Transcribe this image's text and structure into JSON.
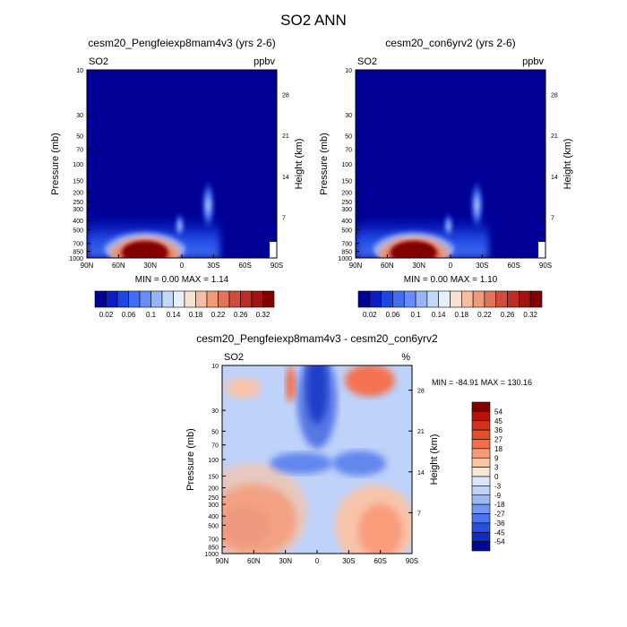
{
  "page": {
    "title": "SO2 ANN"
  },
  "chart_data": [
    {
      "type": "heatmap",
      "title": "cesm20_Pengfeiexp8mam4v3 (yrs 2-6)",
      "left_label": "SO2",
      "units": "ppbv",
      "ylabel": "Pressure (mb)",
      "ylabel_right": "Height (km)",
      "x_ticks": [
        "90N",
        "60N",
        "30N",
        "0",
        "30S",
        "60S",
        "90S"
      ],
      "y_ticks": [
        "10",
        "30",
        "50",
        "70",
        "100",
        "150",
        "200",
        "250",
        "300",
        "400",
        "500",
        "700",
        "850",
        "1000"
      ],
      "y_ticks_right": [
        "28",
        "21",
        "14",
        "7"
      ],
      "min_max": "MIN =   0.00  MAX =   1.14",
      "colorbar": {
        "labels": [
          "0.02",
          "0.06",
          "0.1",
          "0.14",
          "0.18",
          "0.22",
          "0.26",
          "0.32"
        ],
        "colors": [
          "#000096",
          "#0a1ec8",
          "#1e46e1",
          "#416ef0",
          "#698cfa",
          "#96b4fa",
          "#c3d7fa",
          "#e6f0fa",
          "#fae1d2",
          "#f5bea0",
          "#f09b78",
          "#e1735a",
          "#d24b3c",
          "#be2d23",
          "#a01414",
          "#820000"
        ]
      },
      "xlim": [
        90,
        -90
      ],
      "ylim": [
        1000,
        10
      ]
    },
    {
      "type": "heatmap",
      "title": "cesm20_con6yrv2 (yrs 2-6)",
      "left_label": "SO2",
      "units": "ppbv",
      "ylabel": "Pressure (mb)",
      "ylabel_right": "Height (km)",
      "x_ticks": [
        "90N",
        "60N",
        "30N",
        "0",
        "30S",
        "60S",
        "90S"
      ],
      "y_ticks": [
        "10",
        "30",
        "50",
        "70",
        "100",
        "150",
        "200",
        "250",
        "300",
        "400",
        "500",
        "700",
        "850",
        "1000"
      ],
      "y_ticks_right": [
        "28",
        "21",
        "14",
        "7"
      ],
      "min_max": "MIN =   0.00  MAX =   1.10",
      "colorbar": {
        "labels": [
          "0.02",
          "0.06",
          "0.1",
          "0.14",
          "0.18",
          "0.22",
          "0.26",
          "0.32"
        ],
        "colors": [
          "#000096",
          "#0a1ec8",
          "#1e46e1",
          "#416ef0",
          "#698cfa",
          "#96b4fa",
          "#c3d7fa",
          "#e6f0fa",
          "#fae1d2",
          "#f5bea0",
          "#f09b78",
          "#e1735a",
          "#d24b3c",
          "#be2d23",
          "#a01414",
          "#820000"
        ]
      },
      "xlim": [
        90,
        -90
      ],
      "ylim": [
        1000,
        10
      ]
    },
    {
      "type": "heatmap",
      "title": "cesm20_Pengfeiexp8mam4v3 - cesm20_con6yrv2",
      "left_label": "SO2",
      "units": "%",
      "ylabel": "Pressure (mb)",
      "ylabel_right": "Height (km)",
      "x_ticks": [
        "90N",
        "60N",
        "30N",
        "0",
        "30S",
        "60S",
        "90S"
      ],
      "y_ticks": [
        "10",
        "30",
        "50",
        "70",
        "100",
        "150",
        "200",
        "250",
        "300",
        "400",
        "500",
        "700",
        "850",
        "1000"
      ],
      "y_ticks_right": [
        "28",
        "21",
        "14",
        "7"
      ],
      "min_max": "MIN = -84.91  MAX = 130.16",
      "colorbar": {
        "labels": [
          "54",
          "45",
          "36",
          "27",
          "18",
          "9",
          "3",
          "0",
          "-3",
          "-9",
          "-18",
          "-27",
          "-36",
          "-45",
          "-54"
        ],
        "colors": [
          "#820000",
          "#b4140a",
          "#d2321e",
          "#e65028",
          "#f56e46",
          "#fa9b78",
          "#fac3a5",
          "#fae6d7",
          "#dce8fa",
          "#bed2fa",
          "#9bb9f5",
          "#7396f0",
          "#4b73eb",
          "#2850dc",
          "#0f2dbe",
          "#000a96"
        ]
      },
      "xlim": [
        90,
        -90
      ],
      "ylim": [
        1000,
        10
      ]
    }
  ]
}
